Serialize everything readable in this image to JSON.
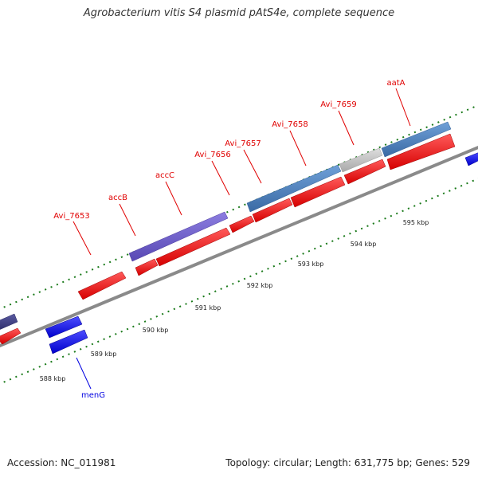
{
  "title": "Agrobacterium vitis S4 plasmid pAtS4e, complete sequence",
  "accession": "Accession: NC_011981",
  "stats": "Topology: circular; Length: 631,775 bp; Genes: 529",
  "colors": {
    "backbone": "#8a8a8a",
    "forward_gene": "#ff0000",
    "reverse_gene": "#0000ff",
    "operon_purple": "#7060cc",
    "operon_blue": "#4a80c0",
    "operon_gray": "#c4c4c4",
    "label_forward": "#e00000",
    "label_reverse": "#0000e0",
    "tick": "#1a7a1a"
  },
  "scale": {
    "labels": [
      "588 kbp",
      "589 kbp",
      "590 kbp",
      "591 kbp",
      "592 kbp",
      "593 kbp",
      "594 kbp",
      "595 kbp"
    ]
  },
  "genes": {
    "labels_top": [
      "Avi_7653",
      "accB",
      "accC",
      "Avi_7656",
      "Avi_7657",
      "Avi_7658",
      "Avi_7659",
      "aatA"
    ],
    "labels_bottom": [
      "menG"
    ]
  }
}
